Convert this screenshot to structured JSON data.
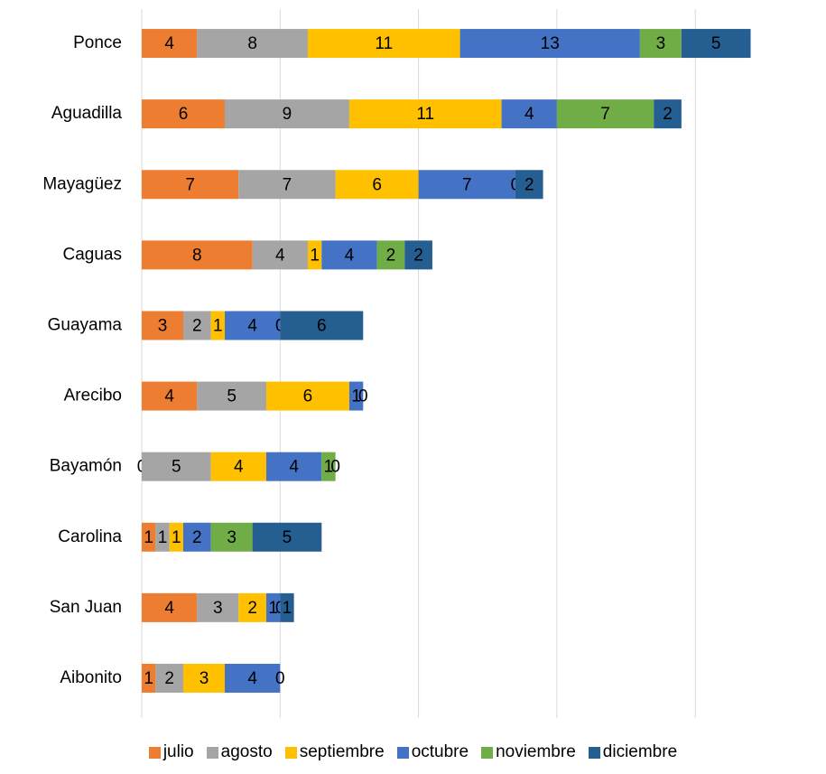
{
  "chart_data": {
    "type": "stacked-bar-horizontal",
    "categories": [
      "Ponce",
      "Aguadilla",
      "Mayagüez",
      "Caguas",
      "Guayama",
      "Arecibo",
      "Bayamón",
      "Carolina",
      "San Juan",
      "Aibonito"
    ],
    "series": [
      {
        "name": "julio",
        "color": "#ed7d31",
        "values": [
          4,
          6,
          7,
          8,
          3,
          4,
          0,
          1,
          4,
          1
        ]
      },
      {
        "name": "agosto",
        "color": "#a5a5a5",
        "values": [
          8,
          9,
          7,
          4,
          2,
          5,
          5,
          1,
          3,
          2
        ]
      },
      {
        "name": "septiembre",
        "color": "#ffc000",
        "values": [
          11,
          11,
          6,
          1,
          1,
          6,
          4,
          1,
          2,
          3
        ]
      },
      {
        "name": "octubre",
        "color": "#4472c4",
        "values": [
          13,
          4,
          7,
          4,
          4,
          1,
          4,
          2,
          1,
          4
        ]
      },
      {
        "name": "noviembre",
        "color": "#70ad47",
        "values": [
          3,
          7,
          0,
          2,
          0,
          0,
          1,
          3,
          0,
          0
        ]
      },
      {
        "name": "diciembre",
        "color": "#255e91",
        "values": [
          5,
          2,
          2,
          2,
          6,
          null,
          0,
          5,
          1,
          null
        ]
      }
    ],
    "xlim": [
      0,
      45
    ],
    "xticks": [
      0,
      10,
      20,
      30,
      40
    ],
    "grid": true
  }
}
